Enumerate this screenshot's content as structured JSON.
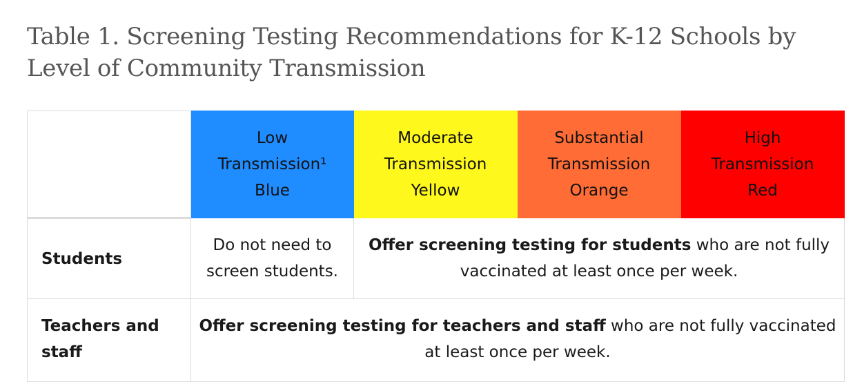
{
  "title": "Table 1. Screening Testing Recommendations for K-12 Schools by Level of Community Transmission",
  "header": {
    "levels": [
      {
        "line1": "Low",
        "line2": "Transmission¹",
        "line3": "Blue",
        "bg": "#1f8cff",
        "text_color": "#111111"
      },
      {
        "line1": "Moderate",
        "line2": "Transmission",
        "line3": "Yellow",
        "bg": "#fff81c",
        "text_color": "#111111"
      },
      {
        "line1": "Substantial",
        "line2": "Transmission",
        "line3": "Orange",
        "bg": "#ff6c35",
        "text_color": "#111111"
      },
      {
        "line1": "High",
        "line2": "Transmission",
        "line3": "Red",
        "bg": "#ff0000",
        "text_color": "#111111"
      }
    ]
  },
  "rows": {
    "students": {
      "label": "Students",
      "low": "Do not need to screen students.",
      "rest_bold": "Offer screening testing for students",
      "rest_normal": " who are not fully vaccinated at least once per week."
    },
    "teachers": {
      "label": "Teachers and staff",
      "all_bold": "Offer screening testing for teachers and staff",
      "all_normal": " who are not fully vaccinated at least once per week."
    }
  }
}
